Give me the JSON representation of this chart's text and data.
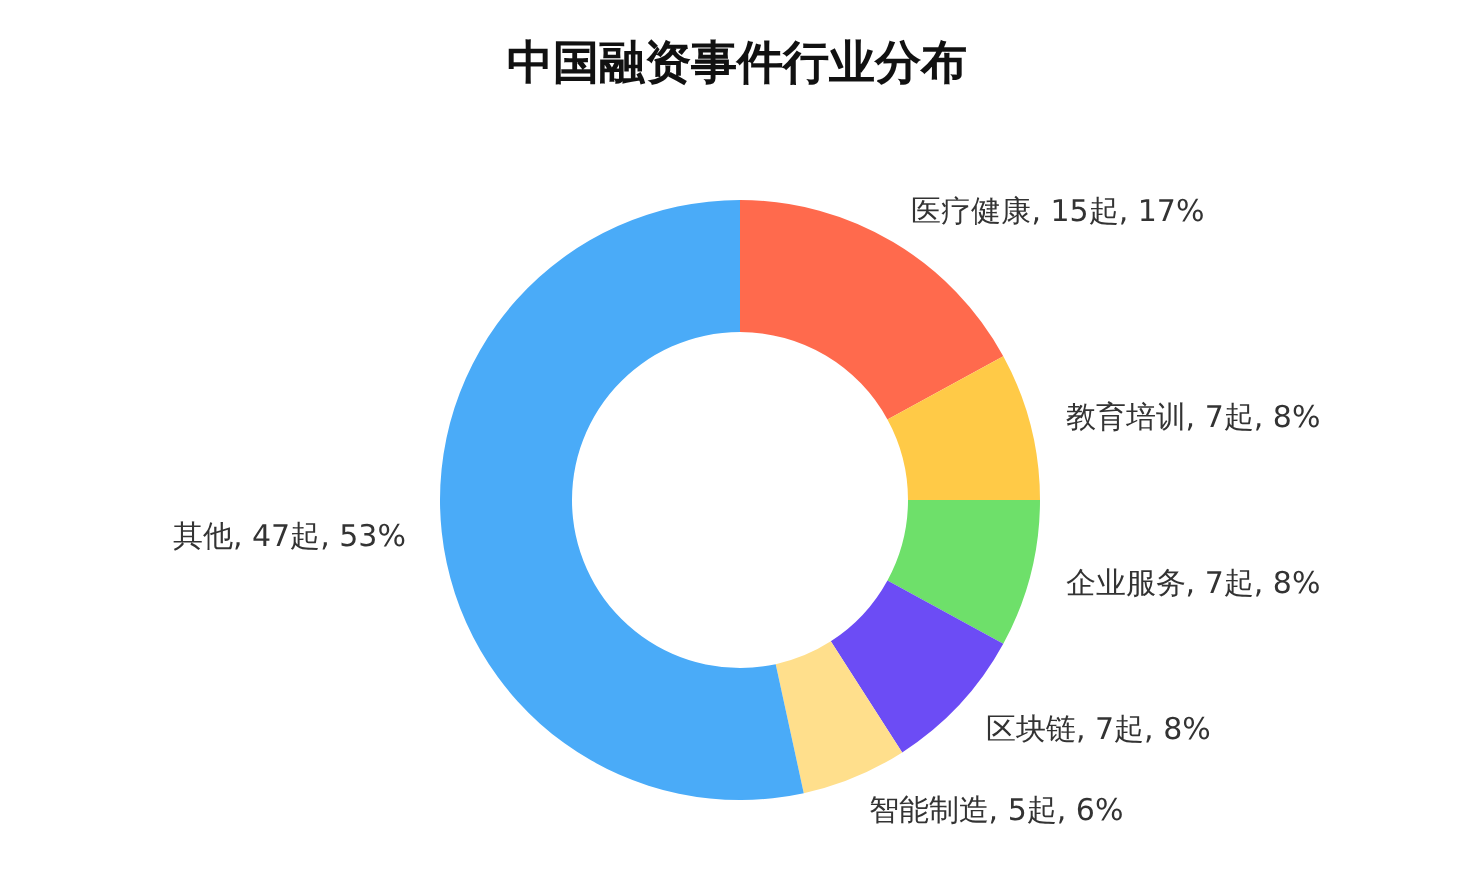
{
  "chart_data": {
    "type": "donut",
    "title": "中国融资事件行业分布",
    "categories": [
      "医疗健康",
      "教育培训",
      "企业服务",
      "区块链",
      "智能制造",
      "其他"
    ],
    "values": [
      15,
      7,
      7,
      7,
      5,
      47
    ],
    "value_labels": [
      "15起, 17%",
      "7起, 8%",
      "7起, 8%",
      "7起, 8%",
      "5起, 6%",
      "47起, 53%"
    ],
    "colors": [
      "#ff6a4d",
      "#ffca47",
      "#6ee06a",
      "#6c4cf5",
      "#ffdf8c",
      "#4aabf8"
    ],
    "legend": false
  }
}
